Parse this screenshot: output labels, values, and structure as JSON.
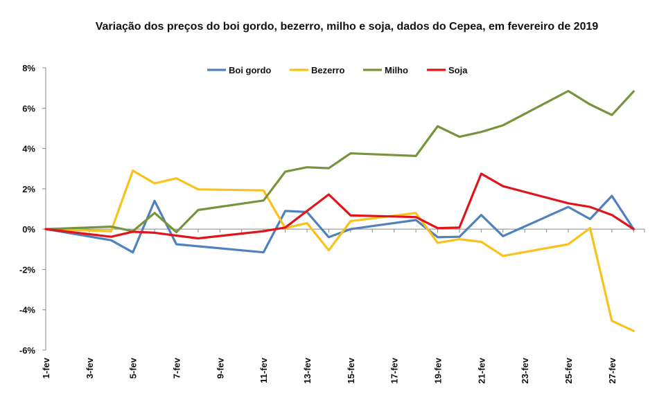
{
  "chart_data": {
    "type": "line",
    "title": "Variação dos preços do boi gordo, bezerro, milho e soja, dados do Cepea, em fevereiro  de 2019",
    "xlabel": "",
    "ylabel": "",
    "ylim": [
      -6,
      8
    ],
    "y_ticks": [
      "8%",
      "6%",
      "4%",
      "2%",
      "0%",
      "-2%",
      "-4%",
      "-6%"
    ],
    "y_tick_values": [
      8,
      6,
      4,
      2,
      0,
      -2,
      -4,
      -6
    ],
    "x_tick_labels": [
      "1-fev",
      "3-fev",
      "5-fev",
      "7-fev",
      "9-fev",
      "11-fev",
      "13-fev",
      "15-fev",
      "17-fev",
      "19-fev",
      "21-fev",
      "23-fev",
      "25-fev",
      "27-fev"
    ],
    "x_tick_days": [
      1,
      3,
      5,
      7,
      9,
      11,
      13,
      15,
      17,
      19,
      21,
      23,
      25,
      27
    ],
    "x_range_days": [
      1,
      28.5
    ],
    "grid": false,
    "legend_position": "top",
    "series": [
      {
        "name": "Boi gordo",
        "color": "#4f81bd",
        "x": [
          1,
          4,
          5,
          6,
          7,
          11,
          12,
          13,
          14,
          15,
          18,
          19,
          20,
          21,
          22,
          25,
          26,
          27,
          28
        ],
        "values": [
          0,
          -0.55,
          -1.15,
          1.4,
          -0.75,
          -1.15,
          0.9,
          0.85,
          -0.4,
          0,
          0.45,
          -0.4,
          -0.38,
          0.7,
          -0.35,
          1.1,
          0.5,
          1.65,
          0
        ]
      },
      {
        "name": "Bezerro",
        "color": "#f8c21b",
        "x": [
          1,
          4,
          5,
          6,
          7,
          8,
          11,
          12,
          13,
          14,
          15,
          18,
          19,
          20,
          21,
          22,
          25,
          26,
          27,
          28
        ],
        "values": [
          0,
          -0.1,
          2.9,
          2.27,
          2.52,
          1.97,
          1.92,
          0.05,
          0.3,
          -1.05,
          0.4,
          0.8,
          -0.68,
          -0.5,
          -0.63,
          -1.33,
          -0.75,
          0.05,
          -4.55,
          -5.05
        ]
      },
      {
        "name": "Milho",
        "color": "#77933c",
        "x": [
          1,
          4,
          5,
          6,
          7,
          8,
          11,
          12,
          13,
          14,
          15,
          18,
          19,
          20,
          21,
          22,
          25,
          26,
          27,
          28
        ],
        "values": [
          0,
          0.12,
          -0.1,
          0.8,
          -0.15,
          0.95,
          1.42,
          2.85,
          3.07,
          3.02,
          3.76,
          3.63,
          5.1,
          4.58,
          4.82,
          5.15,
          6.85,
          6.18,
          5.66,
          6.83
        ]
      },
      {
        "name": "Soja",
        "color": "#e0141b",
        "x": [
          1,
          4,
          5,
          6,
          7,
          8,
          11,
          12,
          13,
          14,
          15,
          18,
          19,
          20,
          21,
          22,
          25,
          26,
          27,
          28
        ],
        "values": [
          0,
          -0.38,
          -0.13,
          -0.18,
          -0.32,
          -0.46,
          -0.1,
          0.08,
          0.9,
          1.72,
          0.68,
          0.6,
          0.05,
          0.08,
          2.75,
          2.13,
          1.28,
          1.1,
          0.7,
          0
        ]
      }
    ]
  }
}
